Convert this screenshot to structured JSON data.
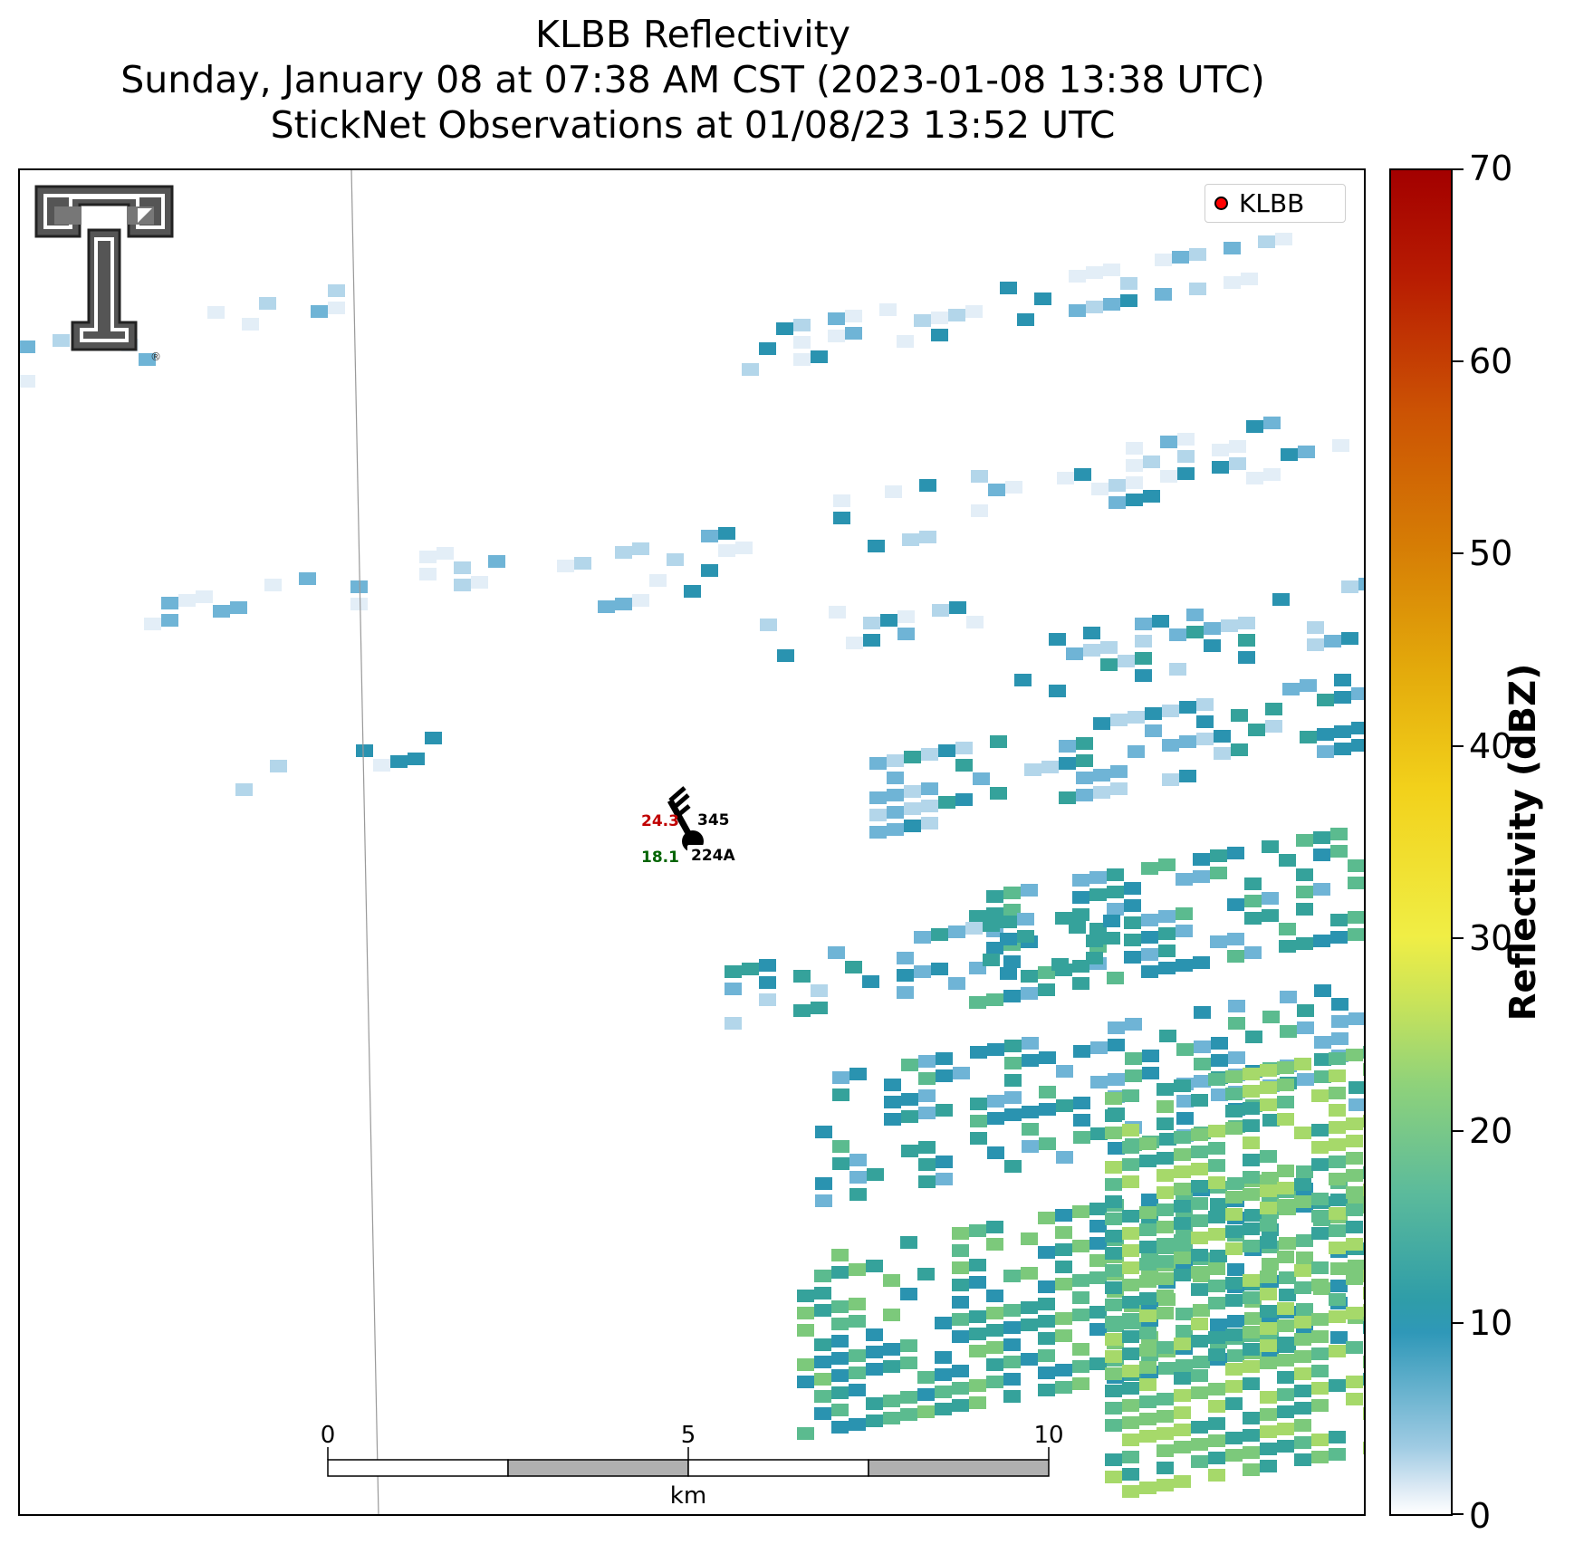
{
  "title": {
    "line1": "KLBB Reflectivity",
    "line2": "Sunday, January 08 at 07:38 AM CST (2023-01-08 13:38 UTC)",
    "line3": "StickNet Observations at 01/08/23 13:52 UTC"
  },
  "legend": {
    "label": "KLBB",
    "marker_color": "#ff0000"
  },
  "colorbar": {
    "label": "Reflectivity (dBZ)",
    "min": 0,
    "max": 70,
    "ticks": [
      "0",
      "10",
      "20",
      "30",
      "40",
      "50",
      "60",
      "70"
    ],
    "colors": [
      "#ffffff",
      "#9fcbe3",
      "#2f98b8",
      "#5cbb9b",
      "#8fd27a",
      "#f0ee45",
      "#f2d11b",
      "#e3a90b",
      "#d67d05",
      "#cc5304",
      "#b81c02",
      "#a30000"
    ]
  },
  "scalebar": {
    "unit": "km",
    "tick_labels": [
      "0",
      "5",
      "10"
    ],
    "max_km": 10
  },
  "station": {
    "id": "224A",
    "temperature": "24.3",
    "dewpoint": "18.1",
    "pressure": "345",
    "temperature_color": "#c00000",
    "dewpoint_color": "#006400"
  },
  "logo": {
    "name": "texas-tech-double-t-logo",
    "mark": "®"
  },
  "radar_echoes": {
    "description_note": "",
    "dominant_palette": [
      "#e3eef7",
      "#b3d6ea",
      "#6fb4d6",
      "#2a93b0",
      "#35a29b",
      "#5bbb8f",
      "#7cc97b",
      "#a6d96a",
      "#d6e85a",
      "#eaea4a"
    ]
  }
}
